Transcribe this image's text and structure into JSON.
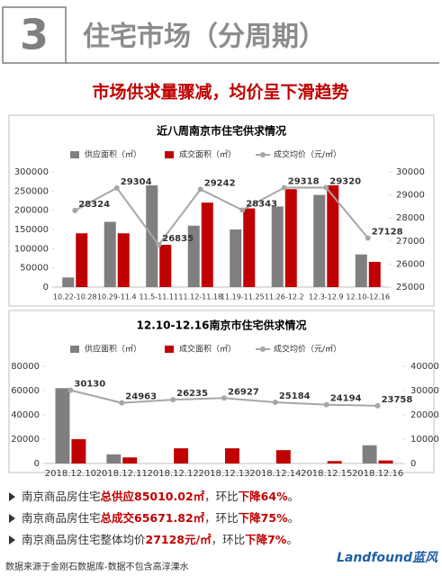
{
  "header": {
    "number": "3",
    "title": "住宅市场（分周期）"
  },
  "headline": "市场供求量骤减，均价呈下滑趋势",
  "chart_data": [
    {
      "type": "bar",
      "title": "近八周南京市住宅供求情况",
      "categories": [
        "10.22-10.28",
        "10.29-11.4",
        "11.5-11.11",
        "11.12-11.18",
        "11.19-11.25",
        "11.26-12.2",
        "12.3-12.9",
        "12.10-12.16"
      ],
      "series": [
        {
          "name": "供应面积（㎡）",
          "type": "bar",
          "color": "#7f7f7f",
          "axis": "y",
          "values": [
            25000,
            170000,
            265000,
            160000,
            150000,
            210000,
            240000,
            85010.02
          ]
        },
        {
          "name": "成交面积（㎡）",
          "type": "bar",
          "color": "#c00000",
          "axis": "y",
          "values": [
            140000,
            140000,
            110000,
            220000,
            205000,
            255000,
            265000,
            65671.82
          ]
        },
        {
          "name": "成交均价（元/㎡）",
          "type": "line",
          "color": "#a6a6a6",
          "axis": "y2",
          "values": [
            28324,
            29304,
            26835,
            29242,
            28343,
            29318,
            29320,
            27128
          ]
        }
      ],
      "ylim": [
        0,
        300000
      ],
      "yticks": [
        0,
        50000,
        100000,
        150000,
        200000,
        250000,
        300000
      ],
      "y2lim": [
        25000,
        30000
      ],
      "y2ticks": [
        25000,
        26000,
        27000,
        28000,
        29000,
        30000
      ],
      "legend": "top"
    },
    {
      "type": "bar",
      "title": "12.10-12.16南京市住宅供求情况",
      "categories": [
        "2018.12.10",
        "2018.12.11",
        "2018.12.12",
        "2018.12.13",
        "2018.12.14",
        "2018.12.15",
        "2018.12.16"
      ],
      "series": [
        {
          "name": "供应面积（㎡）",
          "type": "bar",
          "color": "#7f7f7f",
          "axis": "y",
          "values": [
            62000,
            7500,
            0,
            0,
            0,
            0,
            15000
          ]
        },
        {
          "name": "成交面积（㎡）",
          "type": "bar",
          "color": "#c00000",
          "axis": "y",
          "values": [
            20000,
            5000,
            12500,
            12500,
            11000,
            2000,
            2500
          ]
        },
        {
          "name": "成交均价（元/㎡）",
          "type": "line",
          "color": "#a6a6a6",
          "axis": "y2",
          "values": [
            30130,
            24963,
            26235,
            26927,
            25184,
            24194,
            23758
          ]
        }
      ],
      "ylim": [
        0,
        80000
      ],
      "yticks": [
        0,
        20000,
        40000,
        60000,
        80000
      ],
      "y2lim": [
        0,
        40000
      ],
      "y2ticks": [
        0,
        10000,
        20000,
        30000,
        40000
      ],
      "legend": "top"
    }
  ],
  "bullets": [
    [
      {
        "text": "南京商品房住宅"
      },
      {
        "text": "总供应85010.02㎡",
        "emphasis": true
      },
      {
        "text": "，环比"
      },
      {
        "text": "下降64%",
        "emphasis": true
      },
      {
        "text": "。"
      }
    ],
    [
      {
        "text": "南京商品房住宅"
      },
      {
        "text": "总成交65671.82㎡",
        "emphasis": true
      },
      {
        "text": "，环比"
      },
      {
        "text": "下降75%",
        "emphasis": true
      },
      {
        "text": "。"
      }
    ],
    [
      {
        "text": "南京商品房住宅整体均价"
      },
      {
        "text": "27128元/㎡",
        "emphasis": true
      },
      {
        "text": "，环比"
      },
      {
        "text": "下降7%",
        "emphasis": true
      },
      {
        "text": "。"
      }
    ]
  ],
  "footer": {
    "source": "数据来源于金刚石数据库-数据不包含高淳溧水",
    "logo": "Landfound蓝风"
  }
}
